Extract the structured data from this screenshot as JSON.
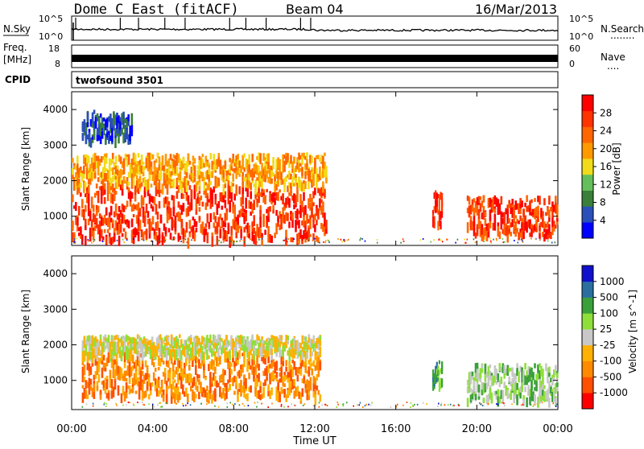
{
  "header": {
    "station_title": "Dome C East (fitACF)",
    "beam": "Beam 04",
    "date": "16/Mar/2013"
  },
  "noise_panel": {
    "left_label": "N.Sky",
    "right_label": "N.Search",
    "left_ticks": [
      "10^5",
      "10^0"
    ],
    "right_ticks": [
      "10^5",
      "10^0"
    ],
    "right_dots": "........"
  },
  "freq_panel": {
    "left_label_line1": "Freq.",
    "left_label_line2": "[MHz]",
    "right_label": "Nave",
    "left_ticks": [
      "18",
      "8"
    ],
    "right_ticks": [
      "60",
      "0"
    ],
    "right_dots": "...."
  },
  "cpid": {
    "label": "CPID",
    "program": "twofsound 3501"
  },
  "xaxis": {
    "label": "Time UT",
    "ticks": [
      "00:00",
      "04:00",
      "08:00",
      "12:00",
      "16:00",
      "20:00",
      "00:00"
    ]
  },
  "colors": {
    "power_scale": [
      "#0000ff",
      "#2a4fb8",
      "#3a7f3a",
      "#63bf5a",
      "#f0dc1a",
      "#ff9900",
      "#ff6600",
      "#ff3300",
      "#ff0000"
    ],
    "velocity_scale": [
      "#ff0000",
      "#ff5000",
      "#ff8a00",
      "#ffb000",
      "#c8c8c8",
      "#8fdf3a",
      "#3aa03a",
      "#2a6fa0",
      "#1010cc"
    ]
  },
  "chart_data": [
    {
      "type": "heatmap",
      "title": "Power",
      "ylabel": "Slant Range [km]",
      "xlabel": "",
      "ylim": [
        180,
        4500
      ],
      "yticks": [
        1000,
        2000,
        3000,
        4000
      ],
      "x": [
        "00:00",
        "04:00",
        "08:00",
        "12:00",
        "16:00",
        "20:00",
        "00:00"
      ],
      "colorbar": {
        "label": "Power [dB]",
        "ticks": [
          "4",
          "8",
          "12",
          "16",
          "20",
          "24",
          "28"
        ]
      },
      "regions": [
        {
          "t_start": 0.0,
          "t_end": 12.6,
          "r_min": 400,
          "r_max": 1900,
          "level": "high"
        },
        {
          "t_start": 0.0,
          "t_end": 12.6,
          "r_min": 1900,
          "r_max": 2800,
          "level": "medium"
        },
        {
          "t_start": 0.5,
          "t_end": 3.0,
          "r_min": 3200,
          "r_max": 4000,
          "level": "low"
        },
        {
          "t_start": 17.8,
          "t_end": 18.3,
          "r_min": 800,
          "r_max": 1800,
          "level": "high"
        },
        {
          "t_start": 19.5,
          "t_end": 24.0,
          "r_min": 500,
          "r_max": 1600,
          "level": "high"
        }
      ]
    },
    {
      "type": "heatmap",
      "title": "Velocity",
      "ylabel": "Slant Range [km]",
      "xlabel": "Time UT",
      "ylim": [
        180,
        4500
      ],
      "yticks": [
        1000,
        2000,
        3000,
        4000
      ],
      "x": [
        "00:00",
        "04:00",
        "08:00",
        "12:00",
        "16:00",
        "20:00",
        "00:00"
      ],
      "colorbar": {
        "label": "Velocity [m s^-1]",
        "ticks": [
          "1000",
          "500",
          "100",
          "25",
          "-25",
          "-100",
          "-500",
          "-1000"
        ]
      },
      "regions": [
        {
          "t_start": 0.5,
          "t_end": 12.3,
          "r_min": 600,
          "r_max": 1800,
          "level": "-300"
        },
        {
          "t_start": 0.5,
          "t_end": 12.3,
          "r_min": 1800,
          "r_max": 2300,
          "level": "0"
        },
        {
          "t_start": 17.8,
          "t_end": 18.3,
          "r_min": 900,
          "r_max": 1600,
          "level": "100"
        },
        {
          "t_start": 19.5,
          "t_end": 24.0,
          "r_min": 500,
          "r_max": 1500,
          "level": "400"
        }
      ]
    }
  ]
}
